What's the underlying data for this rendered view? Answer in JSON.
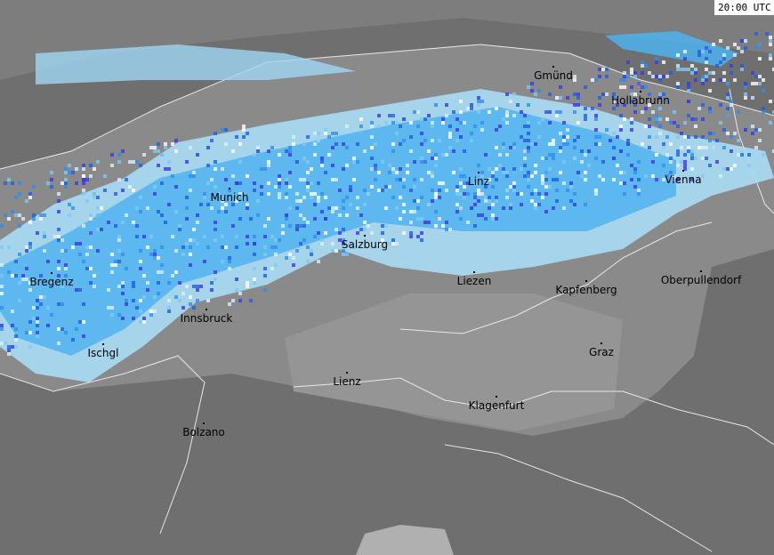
{
  "timestamp": "20:00 UTC",
  "cities": [
    "Gmünd",
    "Hollabrunn",
    "Linz",
    "Vienna",
    "Munich",
    "Salzburg",
    "Liezen",
    "Kapfenberg",
    "Oberpullendorf",
    "Bregenz",
    "Innsbruck",
    "Ischgl",
    "Graz",
    "Lienz",
    "Klagenfurt",
    "Bolzano"
  ]
}
